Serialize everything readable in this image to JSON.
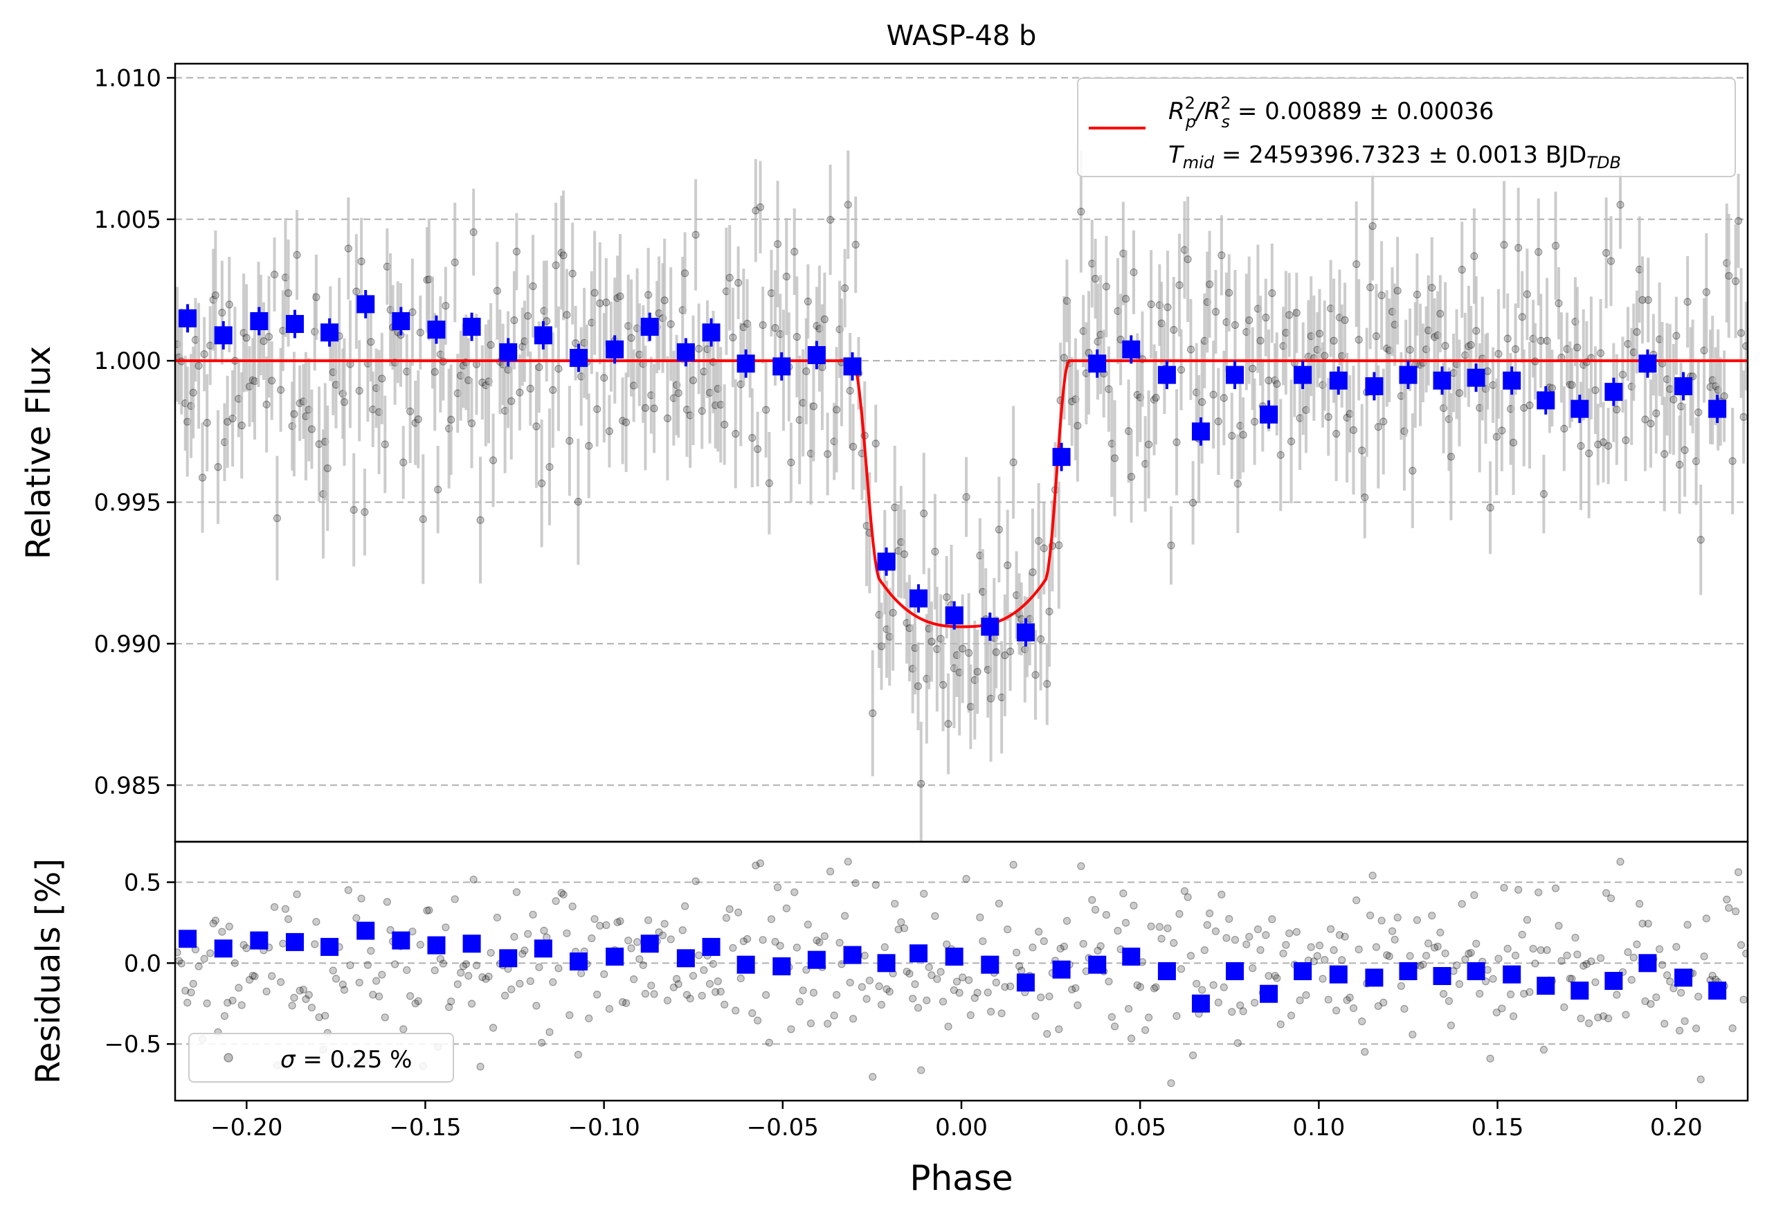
{
  "chart_data": [
    {
      "type": "scatter",
      "panel": "transit",
      "title": "WASP-48 b",
      "xlabel": "Phase",
      "ylabel": "Relative Flux",
      "xlim": [
        -0.22,
        0.22
      ],
      "ylim": [
        0.983,
        1.0105
      ],
      "yticks": [
        0.985,
        0.99,
        0.995,
        1.0,
        1.005,
        1.01
      ],
      "ytick_labels": [
        "0.985",
        "0.990",
        "0.995",
        "1.000",
        "1.005",
        "1.010"
      ],
      "grid": "horizontal dashed",
      "legend": {
        "placement": "top-right",
        "model_label_line1": "R²p/R²s = 0.00889 ± 0.00036",
        "model_label_line2": "Tmid = 2459396.7323 ± 0.0013 BJDTDB",
        "line1_parts": {
          "a": "R",
          "a_sup": "2",
          "a_sub": "p",
          "b": "/R",
          "b_sup": "2",
          "b_sub": "s",
          "rest": " = 0.00889 ± 0.00036"
        },
        "line2_parts": {
          "a": "T",
          "a_sub": "mid",
          "rest": " = 2459396.7323 ± 0.0013 BJD",
          "tail_sub": "TDB"
        }
      },
      "model": {
        "name": "transit model",
        "color": "#ff0000",
        "baseline": 1.0,
        "depth_bottom": 0.9906,
        "ingress_start": -0.0305,
        "ingress_end": -0.0225,
        "egress_start": 0.0232,
        "egress_end": 0.0302
      },
      "raw_points": {
        "name": "raw flux",
        "color": "#000000",
        "errorbar_color": "#bbbbbb",
        "typical_error": 0.0017,
        "count": 560,
        "scatter_sigma": 0.0022
      },
      "binned_points": {
        "name": "binned flux",
        "color": "#0000ff",
        "x": [
          -0.2165,
          -0.2065,
          -0.1965,
          -0.1865,
          -0.1768,
          -0.1667,
          -0.1568,
          -0.1469,
          -0.137,
          -0.1268,
          -0.117,
          -0.1071,
          -0.097,
          -0.0872,
          -0.0771,
          -0.07,
          -0.0603,
          -0.0503,
          -0.0405,
          -0.0305,
          -0.021,
          -0.012,
          -0.002,
          0.008,
          0.018,
          0.028,
          0.038,
          0.0475,
          0.0575,
          0.067,
          0.0765,
          0.086,
          0.0955,
          0.1055,
          0.1155,
          0.125,
          0.1345,
          0.144,
          0.154,
          0.1635,
          0.173,
          0.1825,
          0.192,
          0.202,
          0.2115
        ],
        "y": [
          1.0015,
          1.0009,
          1.0014,
          1.0013,
          1.001,
          1.002,
          1.0014,
          1.0011,
          1.0012,
          1.0003,
          1.0009,
          1.0001,
          1.0004,
          1.0012,
          1.0003,
          1.001,
          0.9999,
          0.9998,
          1.0002,
          0.9998,
          0.9929,
          0.9916,
          0.991,
          0.9906,
          0.9904,
          0.9966,
          0.9999,
          1.0004,
          0.9995,
          0.9975,
          0.9995,
          0.9981,
          0.9995,
          0.9993,
          0.9991,
          0.9995,
          0.9993,
          0.9994,
          0.9993,
          0.9986,
          0.9983,
          0.9989,
          0.9999,
          0.9991,
          0.9983
        ],
        "err": [
          0.0005,
          0.0005,
          0.0005,
          0.0005,
          0.0005,
          0.0005,
          0.0005,
          0.0005,
          0.0005,
          0.0005,
          0.0005,
          0.0005,
          0.0005,
          0.0005,
          0.0005,
          0.0005,
          0.0005,
          0.0005,
          0.0005,
          0.0005,
          0.0005,
          0.0005,
          0.0005,
          0.0005,
          0.0005,
          0.0005,
          0.0005,
          0.0005,
          0.0005,
          0.0005,
          0.0005,
          0.0005,
          0.0005,
          0.0005,
          0.0005,
          0.0005,
          0.0005,
          0.0005,
          0.0005,
          0.0005,
          0.0005,
          0.0005,
          0.0005,
          0.0005,
          0.0005
        ]
      }
    },
    {
      "type": "scatter",
      "panel": "residuals",
      "xlabel": "Phase",
      "ylabel": "Residuals [%]",
      "xlim": [
        -0.22,
        0.22
      ],
      "ylim": [
        -0.85,
        0.75
      ],
      "xticks": [
        -0.2,
        -0.15,
        -0.1,
        -0.05,
        0.0,
        0.05,
        0.1,
        0.15,
        0.2
      ],
      "xtick_labels": [
        "−0.20",
        "−0.15",
        "−0.10",
        "−0.05",
        "0.00",
        "0.05",
        "0.10",
        "0.15",
        "0.20"
      ],
      "yticks": [
        -0.5,
        0.0,
        0.5
      ],
      "ytick_labels": [
        "−0.5",
        "0.0",
        "0.5"
      ],
      "grid": "horizontal dashed",
      "legend": {
        "placement": "bottom-left",
        "label_sigma": "σ",
        "label_rest": " = 0.25 %"
      },
      "raw_points": {
        "name": "raw residuals",
        "color": "#000000",
        "count": 560,
        "scatter_sigma": 0.25
      },
      "binned_points": {
        "name": "binned residuals",
        "color": "#0000ff",
        "x": [
          -0.2165,
          -0.2065,
          -0.1965,
          -0.1865,
          -0.1768,
          -0.1667,
          -0.1568,
          -0.1469,
          -0.137,
          -0.1268,
          -0.117,
          -0.1071,
          -0.097,
          -0.0872,
          -0.0771,
          -0.07,
          -0.0603,
          -0.0503,
          -0.0405,
          -0.0305,
          -0.021,
          -0.012,
          -0.002,
          0.008,
          0.018,
          0.028,
          0.038,
          0.0475,
          0.0575,
          0.067,
          0.0765,
          0.086,
          0.0955,
          0.1055,
          0.1155,
          0.125,
          0.1345,
          0.144,
          0.154,
          0.1635,
          0.173,
          0.1825,
          0.192,
          0.202,
          0.2115
        ],
        "y": [
          0.15,
          0.09,
          0.14,
          0.13,
          0.1,
          0.2,
          0.14,
          0.11,
          0.12,
          0.03,
          0.09,
          0.01,
          0.04,
          0.12,
          0.03,
          0.1,
          -0.01,
          -0.02,
          0.02,
          0.05,
          0.0,
          0.06,
          0.04,
          -0.01,
          -0.12,
          -0.04,
          -0.01,
          0.04,
          -0.05,
          -0.25,
          -0.05,
          -0.19,
          -0.05,
          -0.07,
          -0.09,
          -0.05,
          -0.08,
          -0.05,
          -0.07,
          -0.14,
          -0.17,
          -0.11,
          0.0,
          -0.09,
          -0.17
        ]
      }
    }
  ]
}
